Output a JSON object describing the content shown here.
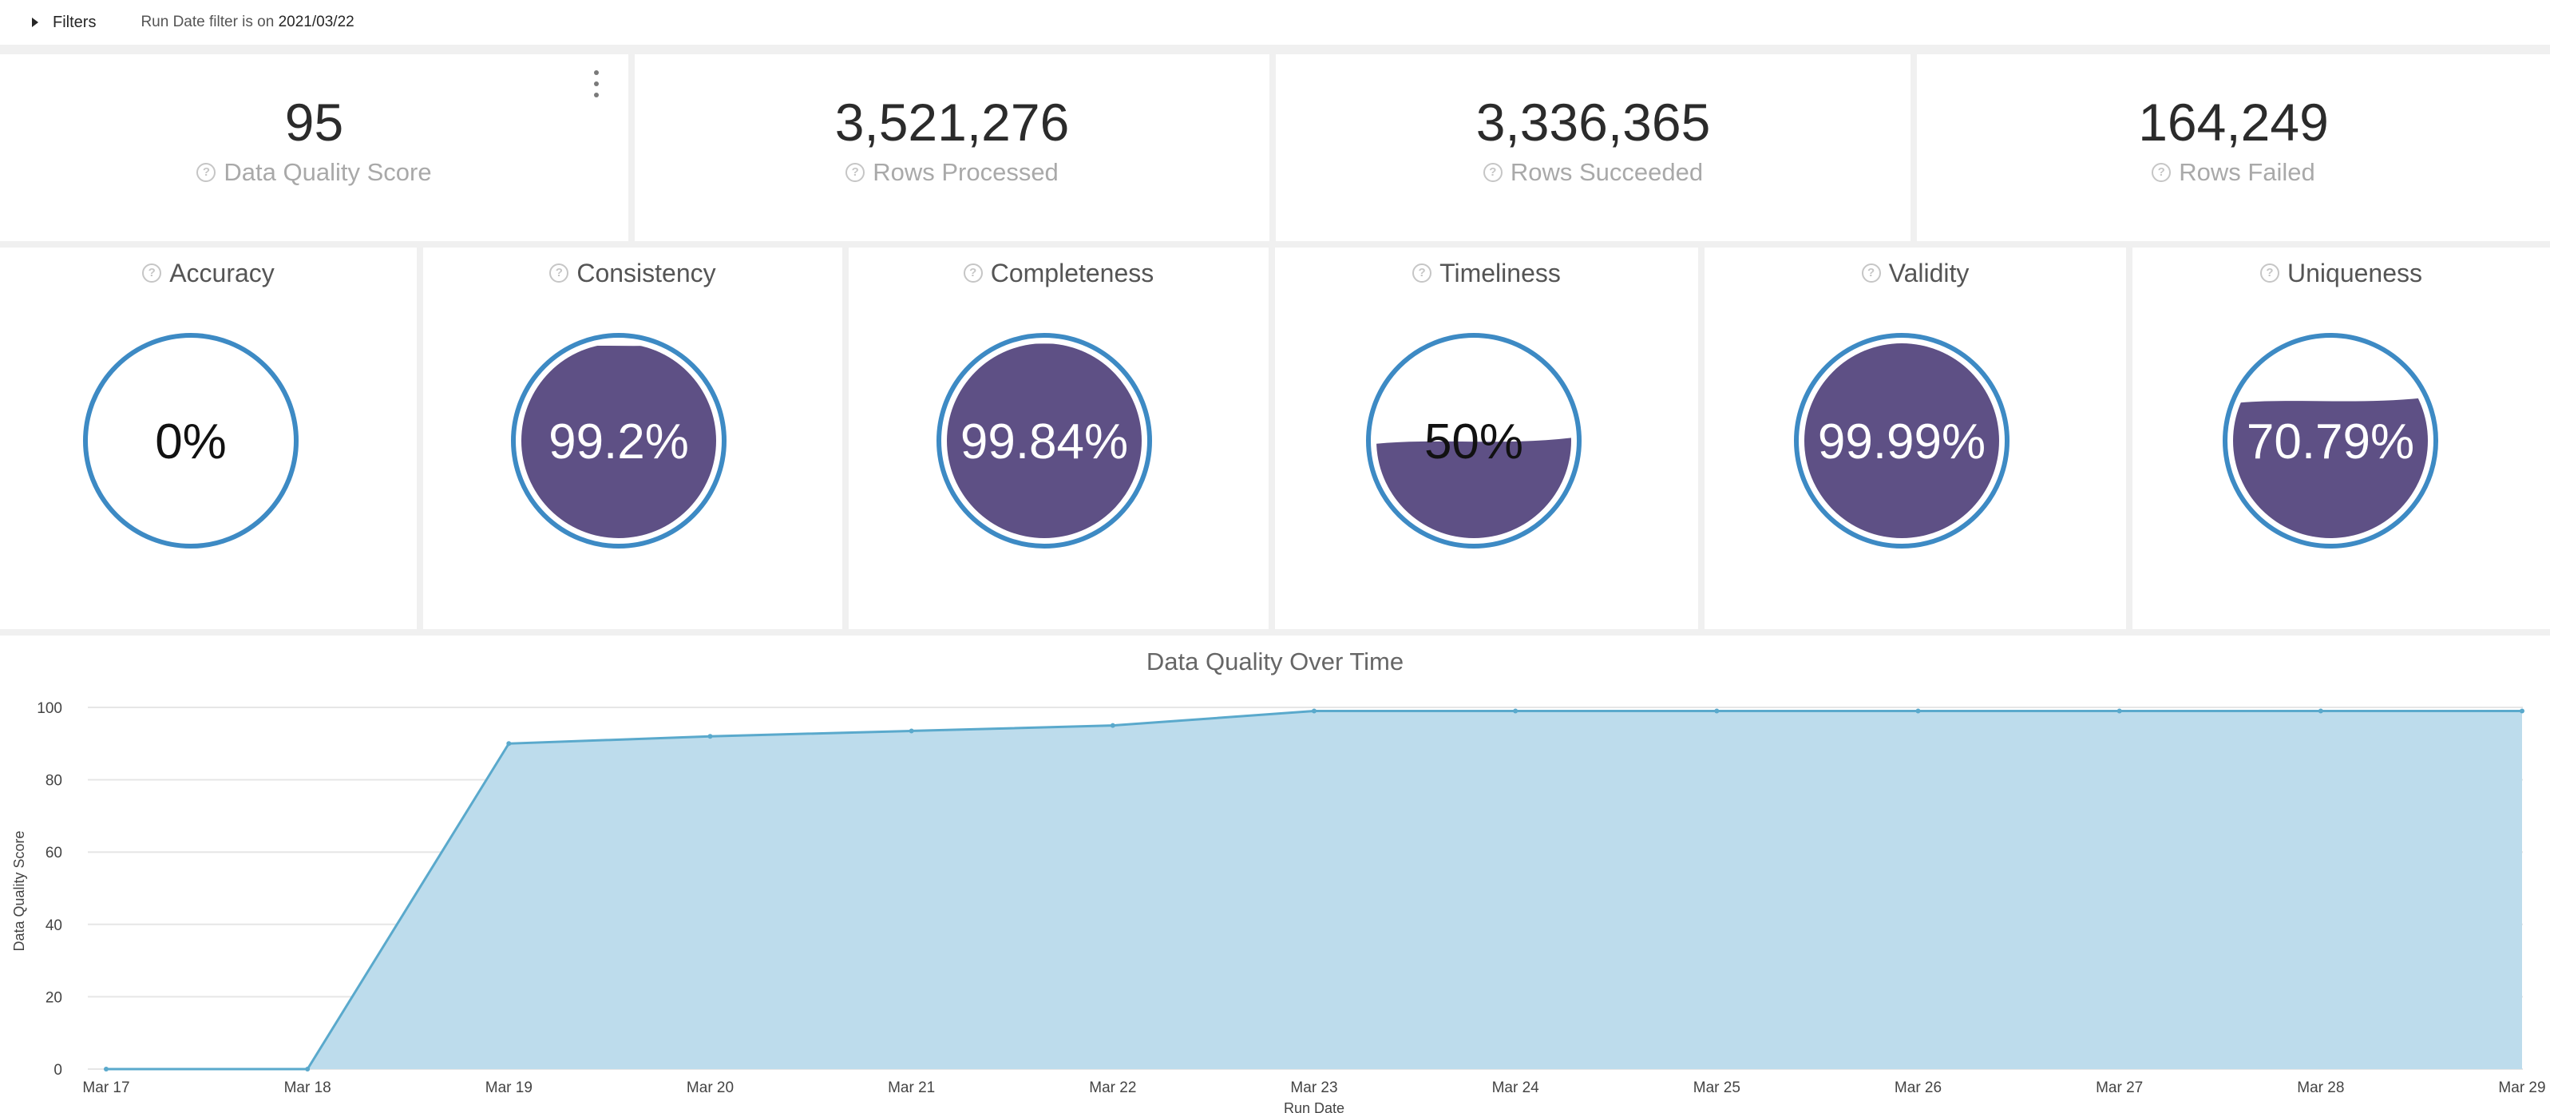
{
  "filters": {
    "toggle_label": "Filters",
    "summary_key": "Run Date filter",
    "summary_mid": " is on ",
    "summary_value": "2021/03/22"
  },
  "kpis": [
    {
      "value": "95",
      "label": "Data Quality Score"
    },
    {
      "value": "3,521,276",
      "label": "Rows Processed"
    },
    {
      "value": "3,336,365",
      "label": "Rows Succeeded"
    },
    {
      "value": "164,249",
      "label": "Rows Failed"
    }
  ],
  "gauges": [
    {
      "title": "Accuracy",
      "text": "0%",
      "fill": 0
    },
    {
      "title": "Consistency",
      "text": "99.2%",
      "fill": 0.992
    },
    {
      "title": "Completeness",
      "text": "99.84%",
      "fill": 0.9984
    },
    {
      "title": "Timeliness",
      "text": "50%",
      "fill": 0.5
    },
    {
      "title": "Validity",
      "text": "99.99%",
      "fill": 0.9999
    },
    {
      "title": "Uniqueness",
      "text": "70.79%",
      "fill": 0.7079
    }
  ],
  "colors": {
    "gauge_ring": "#3d8ac4",
    "gauge_fill": "#5e5085",
    "area_fill": "#bddcec",
    "area_line": "#5aa9cc",
    "grid": "#e6e6e6"
  },
  "chart_data": {
    "type": "area",
    "title": "Data Quality Over Time",
    "xlabel": "Run Date",
    "ylabel": "Data Quality Score",
    "categories": [
      "Mar 17",
      "Mar 18",
      "Mar 19",
      "Mar 20",
      "Mar 21",
      "Mar 22",
      "Mar 23",
      "Mar 24",
      "Mar 25",
      "Mar 26",
      "Mar 27",
      "Mar 28",
      "Mar 29"
    ],
    "values": [
      0,
      0,
      90,
      92,
      93.5,
      95,
      99,
      99,
      99,
      99,
      99,
      99,
      99
    ],
    "yticks": [
      "0",
      "20",
      "40",
      "60",
      "80",
      "100"
    ],
    "ylim": [
      0,
      100
    ]
  }
}
